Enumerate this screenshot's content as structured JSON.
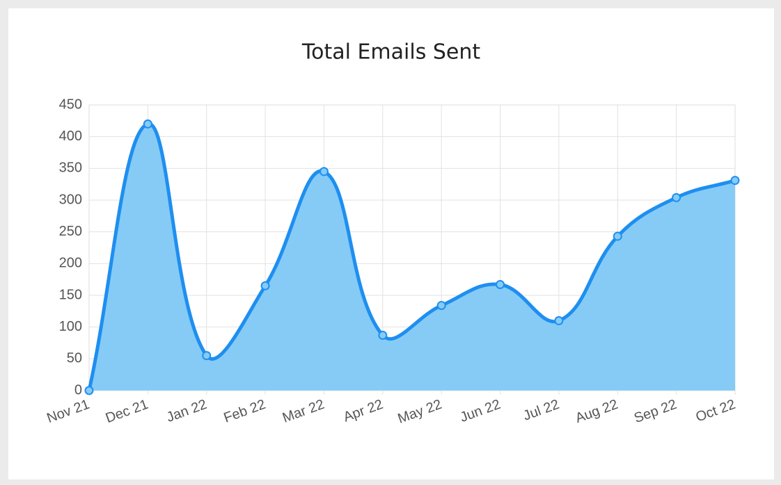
{
  "chart_data": {
    "type": "area",
    "title": "Total Emails Sent",
    "categories": [
      "Nov 21",
      "Dec 21",
      "Jan 22",
      "Feb 22",
      "Mar 22",
      "Apr 22",
      "May 22",
      "Jun 22",
      "Jul 22",
      "Aug 22",
      "Sep 22",
      "Oct 22"
    ],
    "values": [
      0,
      420,
      55,
      165,
      345,
      87,
      134,
      167,
      110,
      243,
      304,
      331
    ],
    "color": "#1e8ff0",
    "fill_color": "#86cbf6",
    "ylim": [
      0,
      450
    ],
    "yticks": [
      0,
      50,
      100,
      150,
      200,
      250,
      300,
      350,
      400,
      450
    ],
    "grid": true
  }
}
